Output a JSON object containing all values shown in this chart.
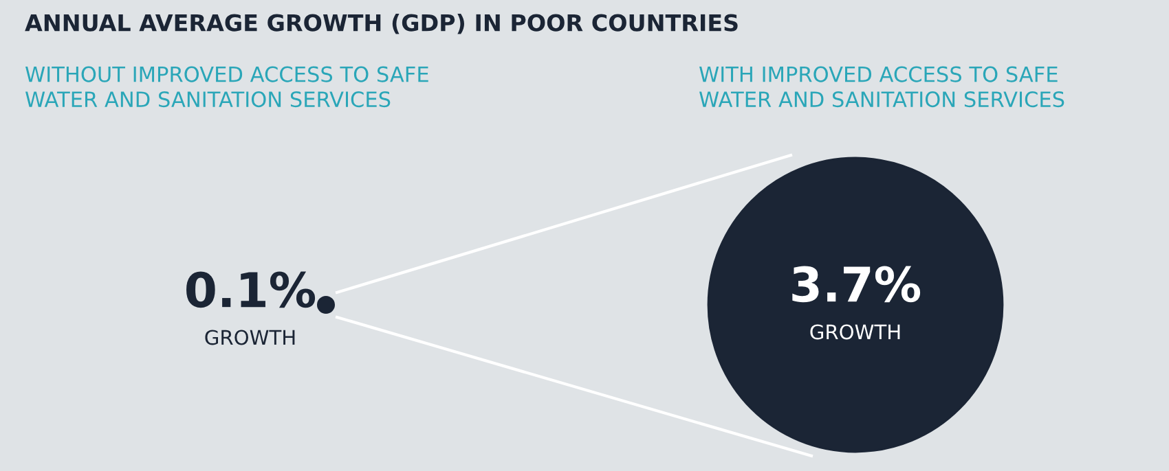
{
  "chart_data": {
    "type": "other",
    "title": "ANNUAL AVERAGE GROWTH (GDP) IN POOR COUNTRIES",
    "categories": [
      "WITHOUT IMPROVED ACCESS TO SAFE WATER AND SANITATION SERVICES",
      "WITH IMPROVED ACCESS TO SAFE WATER AND SANITATION SERVICES"
    ],
    "values": [
      0.1,
      3.7
    ],
    "value_labels": [
      "0.1%",
      "3.7%"
    ],
    "annotations": [
      "GROWTH",
      "GROWTH"
    ],
    "colors": [
      "#1b2535",
      "#1b2535"
    ]
  }
}
